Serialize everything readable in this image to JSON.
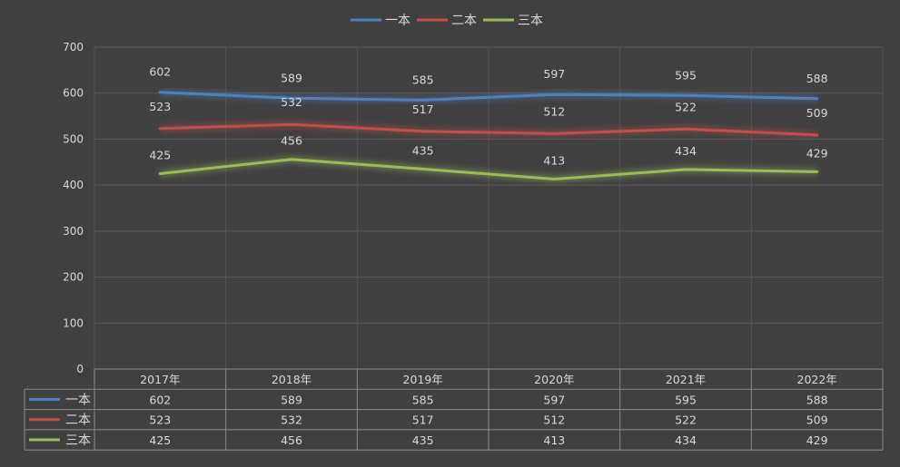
{
  "chart_data": {
    "type": "line",
    "title": "",
    "xlabel": "",
    "ylabel": "",
    "categories": [
      "2017年",
      "2018年",
      "2019年",
      "2020年",
      "2021年",
      "2022年"
    ],
    "series": [
      {
        "name": "一本",
        "values": [
          602,
          589,
          585,
          597,
          595,
          588
        ],
        "color": "#4f81bd"
      },
      {
        "name": "二本",
        "values": [
          523,
          532,
          517,
          512,
          522,
          509
        ],
        "color": "#c0504d"
      },
      {
        "name": "三本",
        "values": [
          425,
          456,
          435,
          413,
          434,
          429
        ],
        "color": "#9bbb59"
      }
    ],
    "ylim": [
      0,
      700
    ],
    "yticks": [
      0,
      100,
      200,
      300,
      400,
      500,
      600,
      700
    ],
    "grid": true,
    "legend": "top",
    "data_table": true
  }
}
